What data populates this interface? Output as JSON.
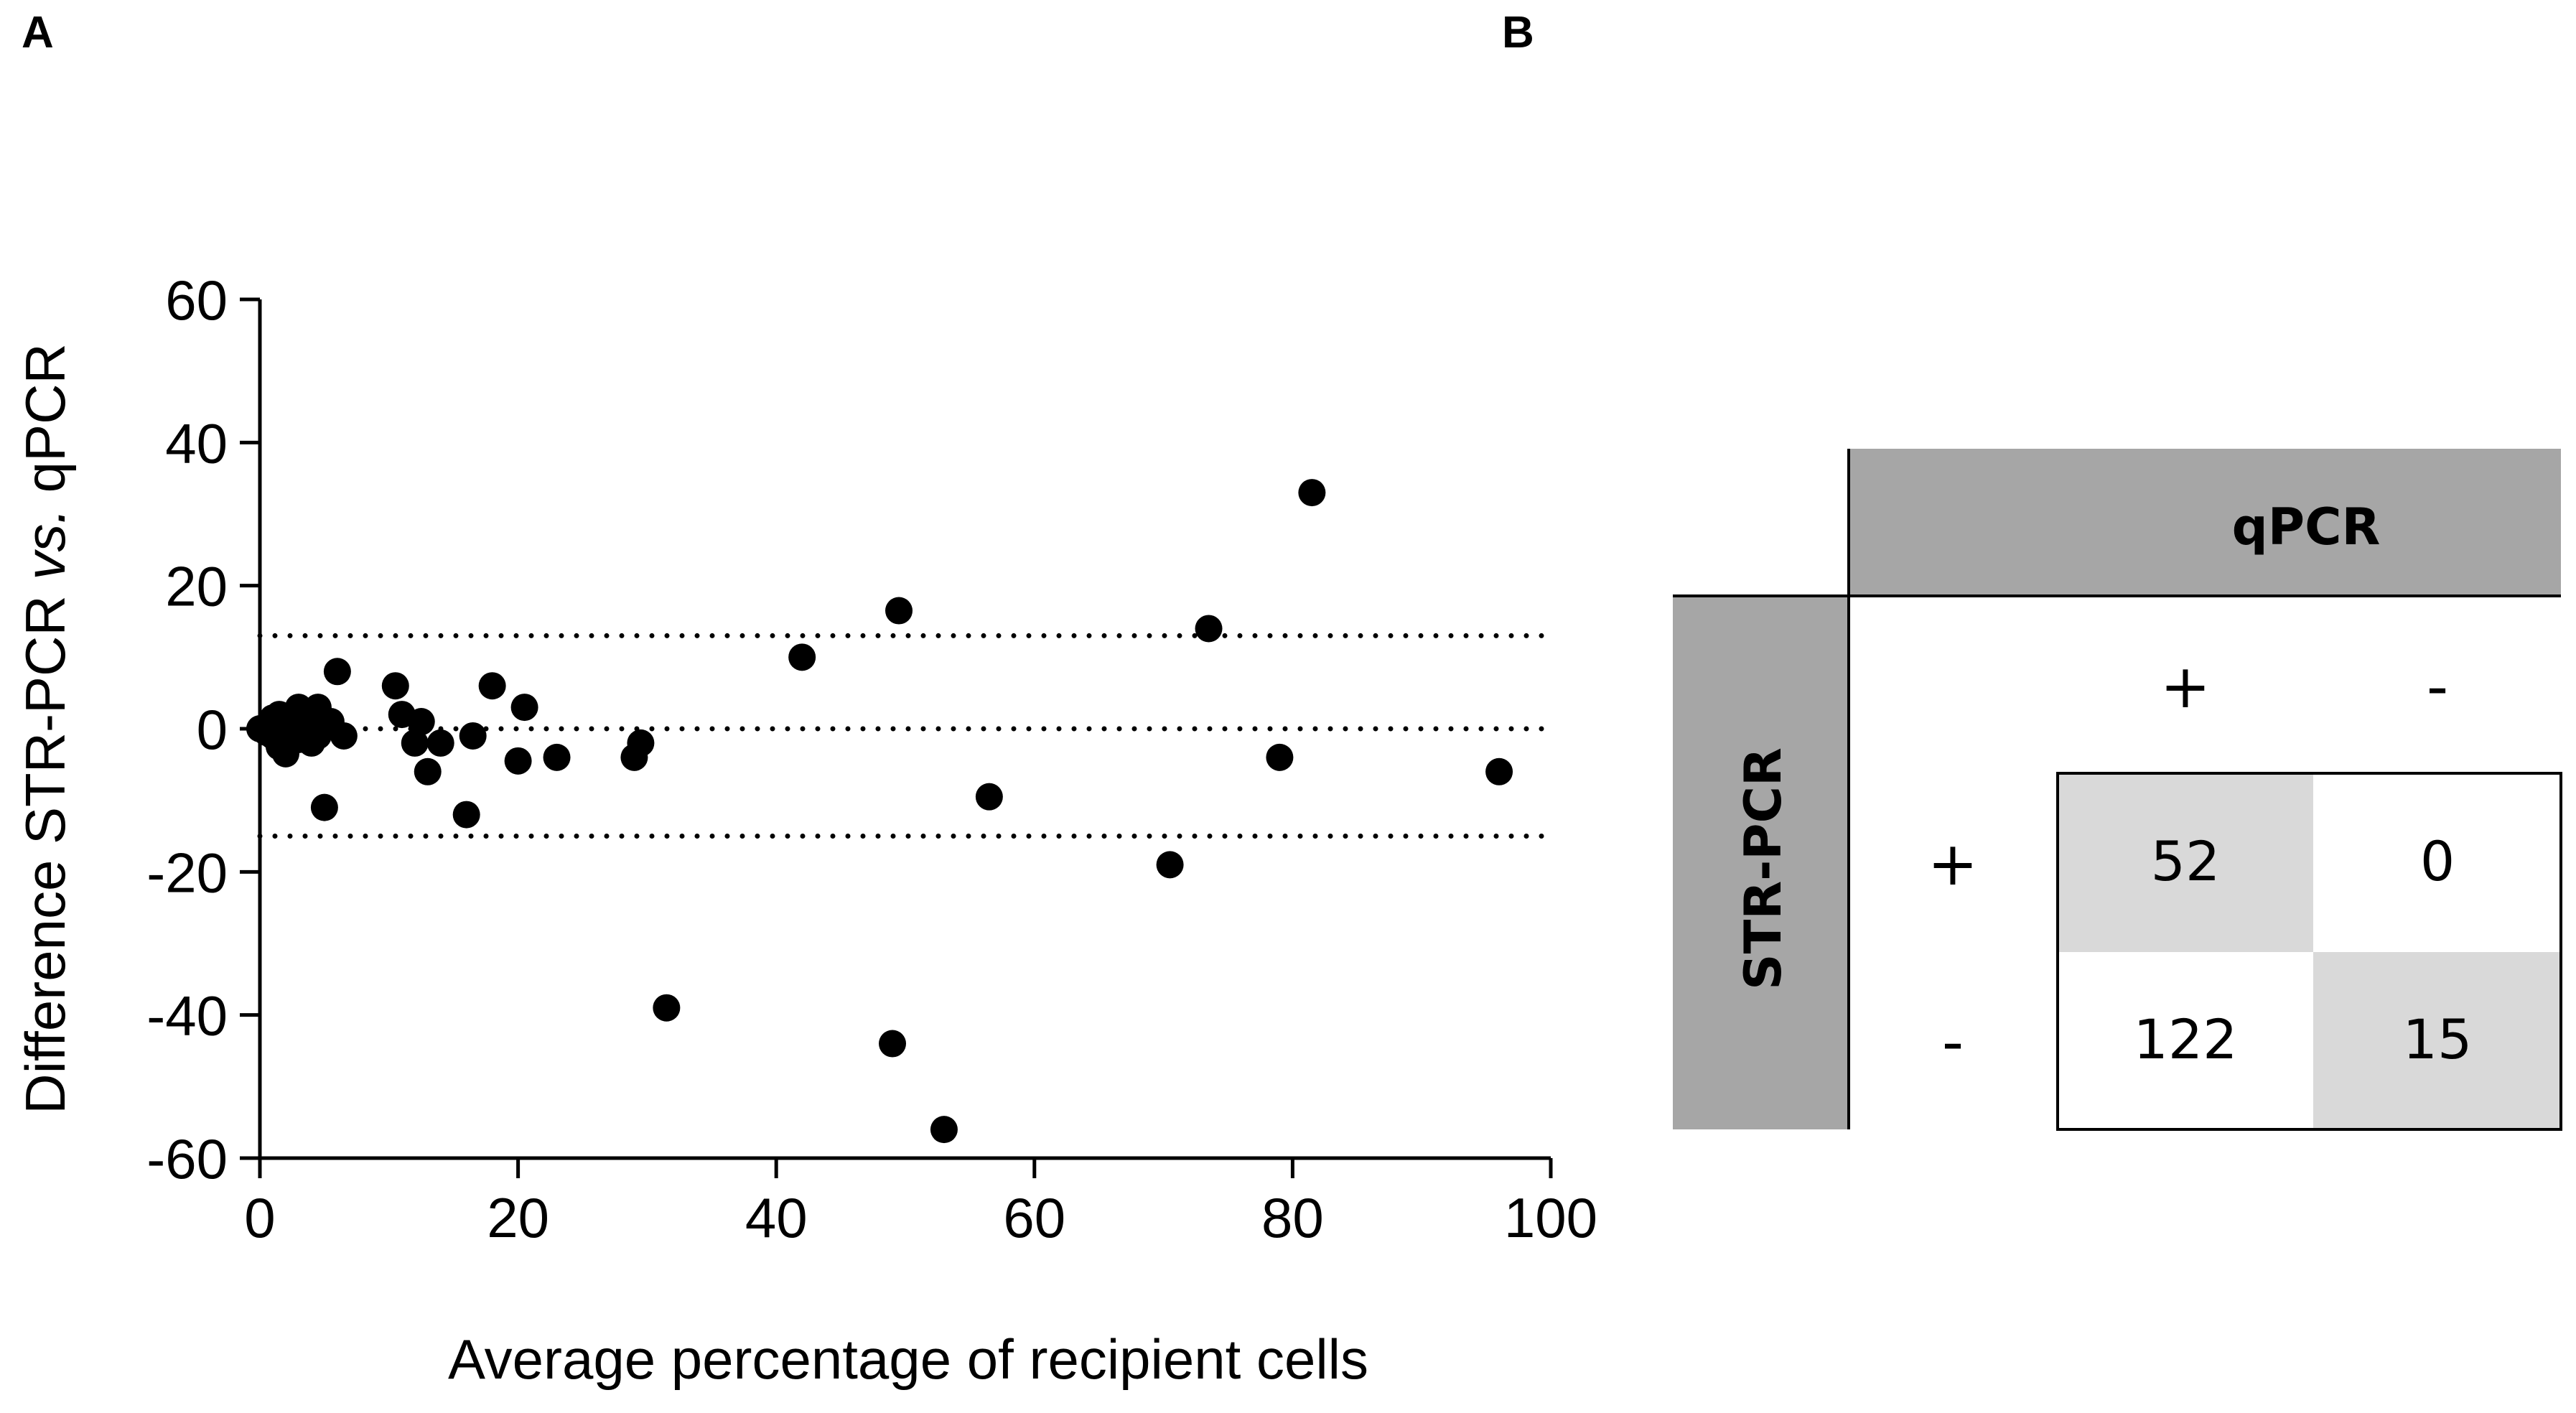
{
  "panels": {
    "a_label": "A",
    "b_label": "B"
  },
  "colors": {
    "marker": "#000000",
    "header_fill": "#a6a6a6",
    "cell_highlight": "#d9d9d9",
    "grid_line": "#000000"
  },
  "chart_data": {
    "type": "scatter",
    "title": "",
    "xlabel": "Average percentage of recipient cells",
    "ylabel_parts": [
      "Difference STR-PCR ",
      "vs.",
      " qPCR"
    ],
    "xlim": [
      0,
      100
    ],
    "ylim": [
      -60,
      60
    ],
    "xticks": [
      "0",
      "20",
      "40",
      "60",
      "80",
      "100"
    ],
    "yticks": [
      "60",
      "40",
      "20",
      "0",
      "-20",
      "-40",
      "-60"
    ],
    "reference_lines": [
      {
        "name": "upper-limit",
        "y": 13
      },
      {
        "name": "mean-bias",
        "y": 0
      },
      {
        "name": "lower-limit",
        "y": -15
      }
    ],
    "points": [
      [
        0,
        0
      ],
      [
        0.5,
        -0.5
      ],
      [
        1,
        1.5
      ],
      [
        1,
        -1
      ],
      [
        1.5,
        2
      ],
      [
        1.5,
        -2.5
      ],
      [
        2,
        0.5
      ],
      [
        2,
        -3.5
      ],
      [
        2.5,
        1
      ],
      [
        3,
        3
      ],
      [
        3,
        -1.5
      ],
      [
        3.5,
        0
      ],
      [
        4,
        2
      ],
      [
        4,
        -2
      ],
      [
        4.5,
        3
      ],
      [
        4.5,
        -1
      ],
      [
        5,
        0.5
      ],
      [
        5,
        -11
      ],
      [
        5.5,
        1
      ],
      [
        6,
        8
      ],
      [
        6.5,
        -1
      ],
      [
        10.5,
        6
      ],
      [
        11,
        2
      ],
      [
        12,
        -2
      ],
      [
        12.5,
        1
      ],
      [
        13,
        -6
      ],
      [
        14,
        -2
      ],
      [
        16,
        -12
      ],
      [
        16.5,
        -1
      ],
      [
        18,
        6
      ],
      [
        20,
        -4.5
      ],
      [
        20.5,
        3
      ],
      [
        23,
        -4
      ],
      [
        29,
        -4
      ],
      [
        29.5,
        -2
      ],
      [
        31.5,
        -39
      ],
      [
        42,
        10
      ],
      [
        49,
        -44
      ],
      [
        49.5,
        16.5
      ],
      [
        53,
        -56
      ],
      [
        56.5,
        -9.5
      ],
      [
        70.5,
        -19
      ],
      [
        73.5,
        14
      ],
      [
        79,
        -4
      ],
      [
        81.5,
        33
      ],
      [
        96,
        -6
      ]
    ]
  },
  "contingency_table": {
    "column_header": "qPCR",
    "row_header": "STR-PCR",
    "column_labels": [
      "+",
      "-"
    ],
    "row_labels": [
      "+",
      "-"
    ],
    "cells": [
      [
        "52",
        "0"
      ],
      [
        "122",
        "15"
      ]
    ]
  }
}
